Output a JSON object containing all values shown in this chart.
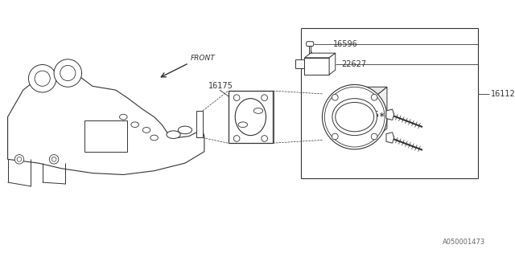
{
  "bg_color": "#ffffff",
  "line_color": "#333333",
  "text_color": "#333333",
  "title_bottom": "A050001473",
  "figsize": [
    6.4,
    3.2
  ],
  "dpi": 100
}
